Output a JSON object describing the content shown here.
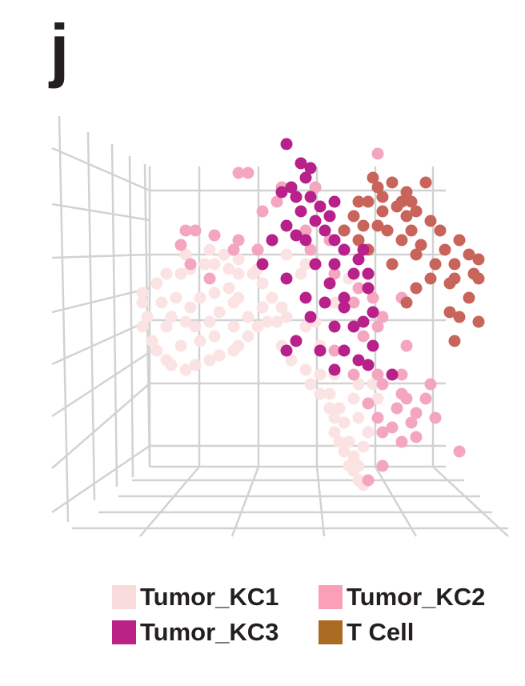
{
  "panel_label": "j",
  "chart_data": {
    "type": "scatter",
    "projection": "3d",
    "grid": true,
    "legend_position": "bottom",
    "xlim": [
      0,
      100
    ],
    "ylim": [
      0,
      100
    ],
    "series": [
      {
        "name": "Tumor_KC1",
        "color": "#fbe3e3",
        "legend_color": "#f8dcdc",
        "points": [
          [
            23,
            54
          ],
          [
            23,
            52
          ],
          [
            24,
            49
          ],
          [
            23,
            47
          ],
          [
            25,
            44
          ],
          [
            26,
            42
          ],
          [
            28,
            40
          ],
          [
            29,
            39
          ],
          [
            32,
            38
          ],
          [
            34,
            39
          ],
          [
            37,
            40
          ],
          [
            39,
            41
          ],
          [
            42,
            42
          ],
          [
            43,
            43
          ],
          [
            45,
            45
          ],
          [
            47,
            47
          ],
          [
            49,
            48
          ],
          [
            51,
            48
          ],
          [
            52,
            51
          ],
          [
            50,
            53
          ],
          [
            48,
            56
          ],
          [
            46,
            58
          ],
          [
            43,
            58
          ],
          [
            41,
            59
          ],
          [
            38,
            60
          ],
          [
            36,
            60
          ],
          [
            33,
            59
          ],
          [
            31,
            58
          ],
          [
            28,
            58
          ],
          [
            26,
            56
          ],
          [
            27,
            52
          ],
          [
            29,
            49
          ],
          [
            32,
            48
          ],
          [
            34,
            47
          ],
          [
            37,
            48
          ],
          [
            39,
            50
          ],
          [
            42,
            52
          ],
          [
            43,
            53
          ],
          [
            41,
            55
          ],
          [
            38,
            54
          ],
          [
            35,
            53
          ],
          [
            33,
            51
          ],
          [
            30,
            53
          ],
          [
            28,
            47
          ],
          [
            31,
            43
          ],
          [
            35,
            44
          ],
          [
            38,
            45
          ],
          [
            42,
            47
          ],
          [
            45,
            49
          ],
          [
            48,
            51
          ],
          [
            32,
            62
          ],
          [
            37,
            63
          ],
          [
            40,
            62
          ],
          [
            43,
            61
          ],
          [
            47,
            59
          ],
          [
            52,
            43
          ],
          [
            54,
            40
          ],
          [
            57,
            38
          ],
          [
            58,
            35
          ],
          [
            60,
            33
          ],
          [
            62,
            30
          ],
          [
            63,
            28
          ],
          [
            63,
            25
          ],
          [
            64,
            23
          ],
          [
            65,
            21
          ],
          [
            66,
            18
          ],
          [
            67,
            17
          ],
          [
            68,
            15
          ],
          [
            69,
            14
          ],
          [
            68,
            18
          ],
          [
            67,
            20
          ],
          [
            66,
            23
          ],
          [
            65,
            27
          ],
          [
            64,
            30
          ],
          [
            62,
            33
          ],
          [
            60,
            37
          ],
          [
            69,
            22
          ],
          [
            70,
            25
          ],
          [
            68,
            28
          ],
          [
            67,
            32
          ],
          [
            72,
            32
          ],
          [
            71,
            35
          ],
          [
            68,
            35
          ],
          [
            63,
            37
          ],
          [
            60,
            43
          ],
          [
            57,
            47
          ],
          [
            53,
            49
          ],
          [
            59,
            48
          ],
          [
            63,
            52
          ],
          [
            66,
            57
          ],
          [
            57,
            60
          ],
          [
            53,
            62
          ],
          [
            56,
            58
          ]
        ]
      },
      {
        "name": "Tumor_KC2",
        "color": "#f4a5c0",
        "legend_color": "#f9a0b8",
        "points": [
          [
            43,
            79
          ],
          [
            45,
            79
          ],
          [
            52,
            76
          ],
          [
            51,
            73
          ],
          [
            48,
            71
          ],
          [
            32,
            67
          ],
          [
            34,
            67
          ],
          [
            38,
            66
          ],
          [
            43,
            65
          ],
          [
            50,
            65
          ],
          [
            47,
            63
          ],
          [
            42,
            63
          ],
          [
            33,
            60
          ],
          [
            37,
            57
          ],
          [
            31,
            64
          ],
          [
            62,
            65
          ],
          [
            58,
            63
          ],
          [
            65,
            67
          ],
          [
            63,
            58
          ],
          [
            68,
            55
          ],
          [
            67,
            52
          ],
          [
            71,
            53
          ],
          [
            73,
            49
          ],
          [
            72,
            47
          ],
          [
            69,
            45
          ],
          [
            72,
            37
          ],
          [
            73,
            35
          ],
          [
            77,
            33
          ],
          [
            78,
            32
          ],
          [
            76,
            30
          ],
          [
            80,
            29
          ],
          [
            82,
            32
          ],
          [
            79,
            27
          ],
          [
            75,
            26
          ],
          [
            77,
            23
          ],
          [
            72,
            28
          ],
          [
            70,
            31
          ],
          [
            73,
            25
          ],
          [
            80,
            24
          ],
          [
            83,
            35
          ],
          [
            84,
            28
          ],
          [
            89,
            21
          ],
          [
            78,
            43
          ],
          [
            77,
            37
          ],
          [
            70,
            15
          ],
          [
            73,
            18
          ],
          [
            57,
            67
          ],
          [
            59,
            76
          ],
          [
            72,
            83
          ],
          [
            77,
            53
          ],
          [
            63,
            42
          ],
          [
            67,
            37
          ]
        ]
      },
      {
        "name": "T Cell",
        "color": "#c8645a",
        "legend_color": "#ab6a22",
        "points": [
          [
            71,
            78
          ],
          [
            72,
            76
          ],
          [
            73,
            74
          ],
          [
            75,
            77
          ],
          [
            77,
            73
          ],
          [
            78,
            75
          ],
          [
            79,
            73
          ],
          [
            80,
            71
          ],
          [
            78,
            70
          ],
          [
            76,
            72
          ],
          [
            73,
            71
          ],
          [
            70,
            73
          ],
          [
            68,
            73
          ],
          [
            67,
            70
          ],
          [
            69,
            68
          ],
          [
            72,
            68
          ],
          [
            65,
            67
          ],
          [
            68,
            65
          ],
          [
            70,
            63
          ],
          [
            74,
            67
          ],
          [
            77,
            65
          ],
          [
            79,
            67
          ],
          [
            81,
            64
          ],
          [
            83,
            69
          ],
          [
            85,
            67
          ],
          [
            86,
            63
          ],
          [
            88,
            60
          ],
          [
            89,
            65
          ],
          [
            91,
            62
          ],
          [
            92,
            58
          ],
          [
            93,
            57
          ],
          [
            93,
            61
          ],
          [
            88,
            57
          ],
          [
            87,
            56
          ],
          [
            84,
            60
          ],
          [
            83,
            57
          ],
          [
            80,
            55
          ],
          [
            78,
            52
          ],
          [
            87,
            50
          ],
          [
            89,
            49
          ],
          [
            93,
            48
          ],
          [
            88,
            44
          ],
          [
            91,
            53
          ],
          [
            75,
            60
          ],
          [
            70,
            58
          ],
          [
            80,
            62
          ],
          [
            82,
            77
          ]
        ]
      },
      {
        "name": "Tumor_KC3",
        "color": "#b8208a",
        "legend_color": "#bb2286",
        "points": [
          [
            53,
            85
          ],
          [
            56,
            81
          ],
          [
            58,
            80
          ],
          [
            57,
            78
          ],
          [
            54,
            76
          ],
          [
            52,
            75
          ],
          [
            55,
            74
          ],
          [
            58,
            74
          ],
          [
            60,
            72
          ],
          [
            63,
            73
          ],
          [
            62,
            70
          ],
          [
            59,
            69
          ],
          [
            56,
            71
          ],
          [
            53,
            68
          ],
          [
            55,
            66
          ],
          [
            50,
            65
          ],
          [
            48,
            60
          ],
          [
            53,
            57
          ],
          [
            57,
            65
          ],
          [
            61,
            67
          ],
          [
            63,
            65
          ],
          [
            65,
            63
          ],
          [
            68,
            61
          ],
          [
            69,
            63
          ],
          [
            67,
            58
          ],
          [
            63,
            60
          ],
          [
            62,
            56
          ],
          [
            65,
            53
          ],
          [
            70,
            58
          ],
          [
            70,
            55
          ],
          [
            57,
            53
          ],
          [
            61,
            52
          ],
          [
            65,
            51
          ],
          [
            67,
            47
          ],
          [
            69,
            48
          ],
          [
            71,
            50
          ],
          [
            65,
            42
          ],
          [
            68,
            40
          ],
          [
            70,
            39
          ],
          [
            63,
            38
          ],
          [
            60,
            42
          ],
          [
            55,
            44
          ],
          [
            53,
            42
          ],
          [
            75,
            37
          ],
          [
            71,
            43
          ],
          [
            63,
            47
          ],
          [
            58,
            49
          ],
          [
            59,
            60
          ]
        ]
      }
    ]
  }
}
